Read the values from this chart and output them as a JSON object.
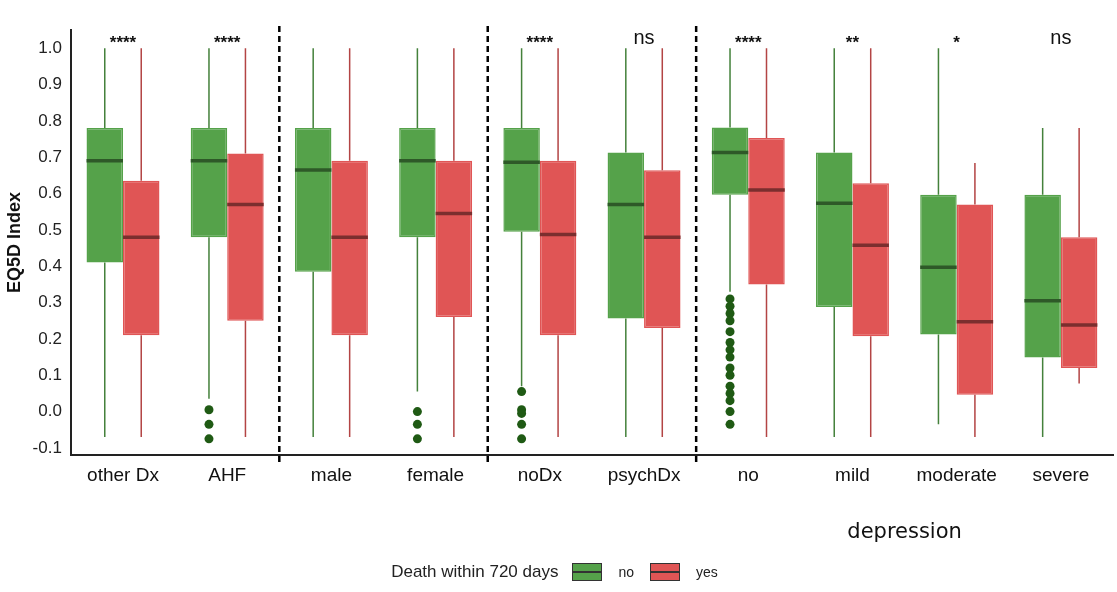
{
  "chart_data": {
    "type": "box",
    "ylabel": "EQ5D Index",
    "xlabel": "depression",
    "legend_title": "Death within 720 days",
    "legend": "bottom",
    "grid": false,
    "marker": "circle",
    "categories": [
      "other Dx",
      "AHF",
      "male",
      "female",
      "noDx",
      "psychDx",
      "no",
      "mild",
      "moderate",
      "severe"
    ],
    "ylim": [
      -0.12,
      1.05
    ],
    "yticks": [
      {
        "value": -0.1,
        "label": "-0.1"
      },
      {
        "value": 0,
        "label": "0.0"
      },
      {
        "value": 0.1,
        "label": "0.1"
      },
      {
        "value": 0.2,
        "label": "0.2"
      },
      {
        "value": 0.3,
        "label": "0.3"
      },
      {
        "value": 0.4,
        "label": "0.4"
      },
      {
        "value": 0.5,
        "label": "0.5"
      },
      {
        "value": 0.6,
        "label": "0.6"
      },
      {
        "value": 0.7,
        "label": "0.7"
      },
      {
        "value": 0.8,
        "label": "0.8"
      },
      {
        "value": 0.9,
        "label": "0.9"
      },
      {
        "value": 1,
        "label": "1.0"
      }
    ],
    "series": [
      {
        "name": "no",
        "color": "#55a24a",
        "boxes": [
          {
            "low": -0.07,
            "q1": 0.41,
            "median": 0.69,
            "q3": 0.78,
            "high": 1.0
          },
          {
            "low": 0.035,
            "q1": 0.48,
            "median": 0.69,
            "q3": 0.78,
            "high": 1.0,
            "outliers": [
              0.005,
              -0.035,
              -0.075
            ]
          },
          {
            "low": -0.07,
            "q1": 0.385,
            "median": 0.665,
            "q3": 0.78,
            "high": 1.0
          },
          {
            "low": 0.055,
            "q1": 0.48,
            "median": 0.69,
            "q3": 0.78,
            "high": 1.0,
            "outliers": [
              0.0,
              -0.035,
              -0.075
            ]
          },
          {
            "low": 0.07,
            "q1": 0.495,
            "median": 0.686,
            "q3": 0.78,
            "high": 1.0,
            "outliers": [
              0.055,
              0.005,
              -0.005,
              -0.035,
              -0.075
            ]
          },
          {
            "low": -0.07,
            "q1": 0.256,
            "median": 0.57,
            "q3": 0.713,
            "high": 1.0
          },
          {
            "low": 0.33,
            "q1": 0.597,
            "median": 0.713,
            "q3": 0.782,
            "high": 1.0,
            "outliers": [
              0.31,
              0.29,
              0.27,
              0.25,
              0.22,
              0.19,
              0.17,
              0.15,
              0.12,
              0.1,
              0.07,
              0.05,
              0.03,
              0.0,
              -0.035
            ]
          },
          {
            "low": -0.07,
            "q1": 0.288,
            "median": 0.573,
            "q3": 0.713,
            "high": 1.0
          },
          {
            "low": -0.035,
            "q1": 0.212,
            "median": 0.397,
            "q3": 0.597,
            "high": 1.0
          },
          {
            "low": -0.07,
            "q1": 0.149,
            "median": 0.305,
            "q3": 0.597,
            "high": 0.78
          }
        ]
      },
      {
        "name": "yes",
        "color": "#e05555",
        "boxes": [
          {
            "low": -0.07,
            "q1": 0.21,
            "median": 0.48,
            "q3": 0.635,
            "high": 1.0
          },
          {
            "low": -0.07,
            "q1": 0.25,
            "median": 0.57,
            "q3": 0.71,
            "high": 1.0
          },
          {
            "low": -0.07,
            "q1": 0.21,
            "median": 0.48,
            "q3": 0.69,
            "high": 1.0
          },
          {
            "low": -0.07,
            "q1": 0.26,
            "median": 0.545,
            "q3": 0.69,
            "high": 1.0
          },
          {
            "low": -0.07,
            "q1": 0.21,
            "median": 0.487,
            "q3": 0.69,
            "high": 1.0
          },
          {
            "low": -0.07,
            "q1": 0.23,
            "median": 0.48,
            "q3": 0.664,
            "high": 1.0
          },
          {
            "low": -0.07,
            "q1": 0.35,
            "median": 0.61,
            "q3": 0.753,
            "high": 1.0
          },
          {
            "low": -0.07,
            "q1": 0.207,
            "median": 0.458,
            "q3": 0.628,
            "high": 1.0
          },
          {
            "low": -0.07,
            "q1": 0.046,
            "median": 0.247,
            "q3": 0.57,
            "high": 0.684
          },
          {
            "low": 0.077,
            "q1": 0.12,
            "median": 0.238,
            "q3": 0.48,
            "high": 0.78
          }
        ]
      }
    ],
    "annotations": [
      "****",
      "****",
      "****",
      "ns",
      "****",
      "**",
      "*",
      "ns"
    ]
  }
}
